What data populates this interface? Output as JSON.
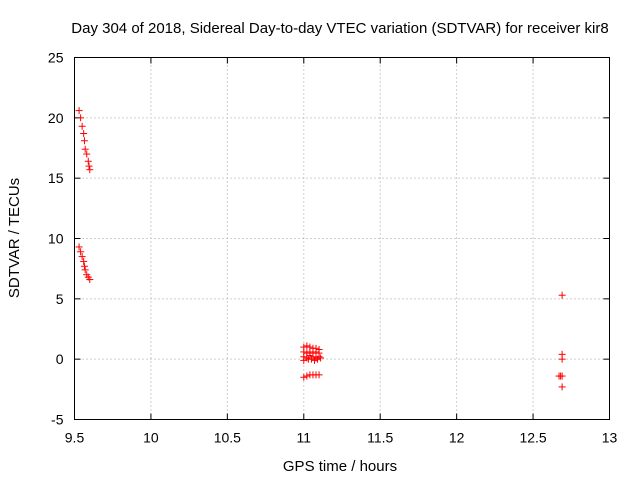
{
  "chart_data": {
    "type": "scatter",
    "title": "Day 304 of 2018, Sidereal Day-to-day VTEC variation (SDTVAR) for receiver kir8",
    "xlabel": "GPS time / hours",
    "ylabel": "SDTVAR / TECUs",
    "xlim": [
      9.5,
      13
    ],
    "ylim": [
      -5,
      25
    ],
    "x_ticks": [
      9.5,
      10,
      10.5,
      11,
      11.5,
      12,
      12.5,
      13
    ],
    "x_tick_labels": [
      "9.5",
      "10",
      "10.5",
      "11",
      "11.5",
      "12",
      "12.5",
      "13"
    ],
    "y_ticks": [
      -5,
      0,
      5,
      10,
      15,
      20,
      25
    ],
    "y_tick_labels": [
      "-5",
      "0",
      "5",
      "10",
      "15",
      "20",
      "25"
    ],
    "grid": true,
    "marker": "+",
    "color": "#ff0000",
    "series": [
      {
        "name": "SDTVAR",
        "points": [
          [
            9.53,
            20.6
          ],
          [
            9.54,
            20.0
          ],
          [
            9.55,
            19.3
          ],
          [
            9.56,
            18.7
          ],
          [
            9.565,
            18.1
          ],
          [
            9.57,
            17.4
          ],
          [
            9.58,
            17.0
          ],
          [
            9.59,
            16.4
          ],
          [
            9.595,
            16.0
          ],
          [
            9.6,
            15.7
          ],
          [
            9.53,
            9.3
          ],
          [
            9.54,
            8.9
          ],
          [
            9.55,
            8.5
          ],
          [
            9.56,
            8.1
          ],
          [
            9.565,
            7.7
          ],
          [
            9.57,
            7.4
          ],
          [
            9.58,
            7.0
          ],
          [
            9.59,
            6.8
          ],
          [
            9.6,
            6.6
          ],
          [
            11.0,
            1.0
          ],
          [
            11.02,
            1.1
          ],
          [
            11.04,
            1.0
          ],
          [
            11.06,
            0.9
          ],
          [
            11.08,
            0.9
          ],
          [
            11.1,
            0.8
          ],
          [
            11.0,
            0.6
          ],
          [
            11.02,
            0.5
          ],
          [
            11.04,
            0.6
          ],
          [
            11.06,
            0.5
          ],
          [
            11.08,
            0.6
          ],
          [
            11.1,
            0.5
          ],
          [
            11.0,
            0.2
          ],
          [
            11.02,
            0.1
          ],
          [
            11.04,
            0.3
          ],
          [
            11.06,
            0.2
          ],
          [
            11.08,
            0.1
          ],
          [
            11.1,
            0.2
          ],
          [
            11.0,
            -0.1
          ],
          [
            11.03,
            0.0
          ],
          [
            11.05,
            0.0
          ],
          [
            11.07,
            -0.1
          ],
          [
            11.09,
            0.0
          ],
          [
            11.11,
            0.1
          ],
          [
            11.0,
            -1.5
          ],
          [
            11.02,
            -1.4
          ],
          [
            11.04,
            -1.3
          ],
          [
            11.06,
            -1.3
          ],
          [
            11.08,
            -1.3
          ],
          [
            11.1,
            -1.3
          ],
          [
            12.67,
            -1.4
          ],
          [
            12.68,
            -1.4
          ],
          [
            12.69,
            -1.4
          ],
          [
            12.69,
            5.3
          ],
          [
            12.69,
            0.4
          ],
          [
            12.69,
            0.0
          ],
          [
            12.69,
            -2.3
          ]
        ]
      }
    ]
  }
}
